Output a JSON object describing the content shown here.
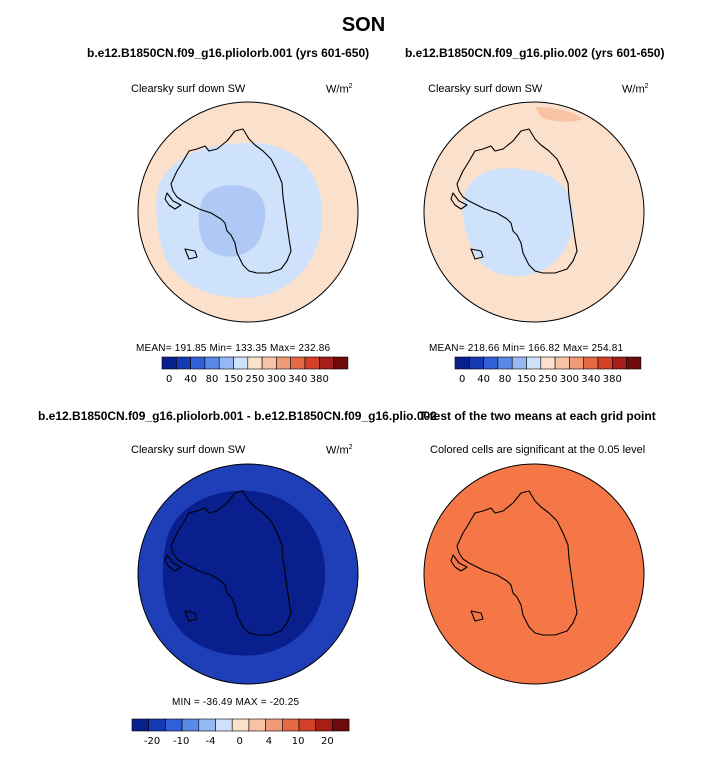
{
  "season": "SON",
  "panels": {
    "top_left": {
      "title": "b.e12.B1850CN.f09_g16.pliolorb.001 (yrs 601-650)",
      "variable": "Clearsky surf down SW",
      "units": "W/m",
      "units_sup": "2",
      "stats": "MEAN= 191.85   Min= 133.35   Max= 232.86"
    },
    "top_right": {
      "title": "b.e12.B1850CN.f09_g16.plio.002 (yrs 601-650)",
      "variable": "Clearsky surf down SW",
      "units": "W/m",
      "units_sup": "2",
      "stats": "MEAN= 218.66   Min= 166.82   Max= 254.81"
    },
    "bottom_left": {
      "title": "b.e12.B1850CN.f09_g16.pliolorb.001 - b.e12.B1850CN.f09_g16.plio.002",
      "variable": "Clearsky surf down SW",
      "units": "W/m",
      "units_sup": "2",
      "stats": "MIN = -36.49  MAX = -20.25"
    },
    "bottom_right": {
      "title": "T-test of the two means at each grid point",
      "note": "Colored cells are significant at the 0.05 level"
    }
  },
  "colorbars": {
    "absolute": {
      "colors": [
        "#08208c",
        "#1639b4",
        "#3060d8",
        "#5a8ae8",
        "#96b8f4",
        "#cfe2fb",
        "#fbe0cc",
        "#f8c2a4",
        "#f19a78",
        "#e66a46",
        "#d2402a",
        "#a51f18",
        "#6e0a0a"
      ],
      "labels": [
        "0",
        "40",
        "80",
        "150",
        "250",
        "300",
        "340",
        "380"
      ],
      "label_boundaries": [
        1,
        2,
        3,
        4,
        6,
        7,
        8,
        9,
        11,
        12
      ]
    },
    "difference": {
      "colors": [
        "#08208c",
        "#1639b4",
        "#3060d8",
        "#5a8ae8",
        "#96b8f4",
        "#cfe2fb",
        "#fbe0cc",
        "#f8c2a4",
        "#f19a78",
        "#e66a46",
        "#d2402a",
        "#a51f18",
        "#6e0a0a"
      ],
      "labels": [
        "-20",
        "-10",
        "-4",
        "0",
        "4",
        "10",
        "20"
      ]
    }
  },
  "map_colors": {
    "absolute_outer": "#fbe0cc",
    "absolute_light": "#cfe2fb",
    "absolute_mid": "#b0c8f6",
    "absolute_warm": "#f8c2a4",
    "difference_outer": "#1f3fb8",
    "difference_inner": "#091f8e",
    "ttest": "#f57748",
    "coast": "#000000"
  }
}
